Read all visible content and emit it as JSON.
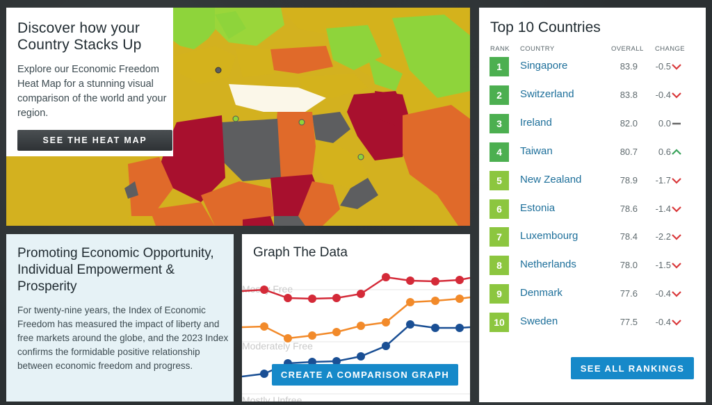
{
  "heatmap": {
    "title": "Discover how your Country Stacks Up",
    "description": "Explore our Economic Freedom Heat Map for a stunning visual comparison of the world and your region.",
    "button_label": "SEE THE HEAT MAP"
  },
  "top10": {
    "title": "Top 10 Countries",
    "headers": {
      "rank": "RANK",
      "country": "COUNTRY",
      "overall": "OVERALL",
      "change": "CHANGE"
    },
    "rows": [
      {
        "rank": "1",
        "country": "Singapore",
        "overall": "83.9",
        "change": "-0.5",
        "trend": "down"
      },
      {
        "rank": "2",
        "country": "Switzerland",
        "overall": "83.8",
        "change": "-0.4",
        "trend": "down"
      },
      {
        "rank": "3",
        "country": "Ireland",
        "overall": "82.0",
        "change": "0.0",
        "trend": "flat"
      },
      {
        "rank": "4",
        "country": "Taiwan",
        "overall": "80.7",
        "change": "0.6",
        "trend": "up"
      },
      {
        "rank": "5",
        "country": "New Zealand",
        "overall": "78.9",
        "change": "-1.7",
        "trend": "down"
      },
      {
        "rank": "6",
        "country": "Estonia",
        "overall": "78.6",
        "change": "-1.4",
        "trend": "down"
      },
      {
        "rank": "7",
        "country": "Luxembourg",
        "overall": "78.4",
        "change": "-2.2",
        "trend": "down"
      },
      {
        "rank": "8",
        "country": "Netherlands",
        "overall": "78.0",
        "change": "-1.5",
        "trend": "down"
      },
      {
        "rank": "9",
        "country": "Denmark",
        "overall": "77.6",
        "change": "-0.4",
        "trend": "down"
      },
      {
        "rank": "10",
        "country": "Sweden",
        "overall": "77.5",
        "change": "-0.4",
        "trend": "down"
      }
    ],
    "button_label": "SEE ALL RANKINGS"
  },
  "promo": {
    "title": "Promoting Economic Opportunity, Individual Empowerment & Prosperity",
    "text": "For twenty-nine years, the Index of Economic Freedom has measured the impact of liberty and free markets around the globe, and the 2023 Index confirms the formidable positive relationship between economic freedom and progress."
  },
  "graph": {
    "title": "Graph The Data",
    "band_labels": [
      "Mostly Free",
      "Moderately Free",
      "Mostly Unfree"
    ],
    "button_label": "CREATE A COMPARISON GRAPH"
  },
  "colors": {
    "green_badge": "#8cc63f",
    "blue_button": "#1689c9",
    "link_blue": "#1d6f9a",
    "down_red": "#d9383a",
    "up_green": "#3aa35b",
    "series_red": "#d42a38",
    "series_orange": "#f28a2a",
    "series_blue": "#1a4f94"
  }
}
